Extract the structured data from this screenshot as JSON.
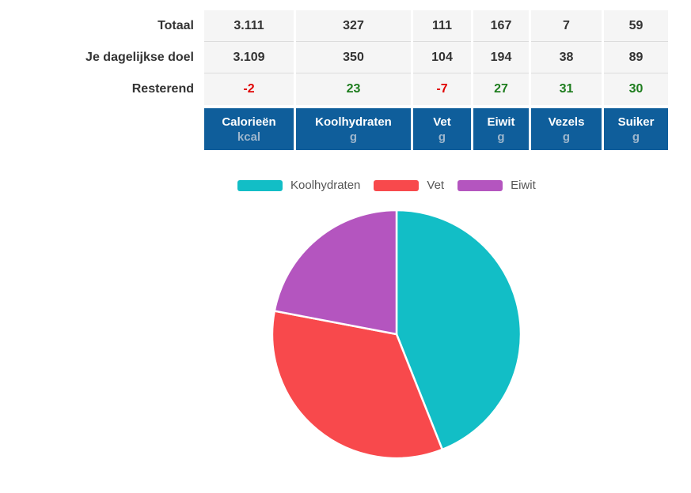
{
  "colors": {
    "header_bg": "#0f5e9b",
    "header_label": "#ffffff",
    "header_unit": "#9db6cc",
    "cell_bg": "#f5f5f5",
    "value_text": "#333333",
    "negative": "#e00000",
    "positive": "#1e7d1e",
    "legend_text": "#555555"
  },
  "table": {
    "columns": [
      {
        "label": "Calorieën",
        "unit": "kcal"
      },
      {
        "label": "Koolhydraten",
        "unit": "g"
      },
      {
        "label": "Vet",
        "unit": "g"
      },
      {
        "label": "Eiwit",
        "unit": "g"
      },
      {
        "label": "Vezels",
        "unit": "g"
      },
      {
        "label": "Suiker",
        "unit": "g"
      }
    ],
    "rows": [
      {
        "label": "Totaal",
        "values": [
          "3.111",
          "327",
          "111",
          "167",
          "7",
          "59"
        ]
      },
      {
        "label": "Je dagelijkse doel",
        "values": [
          "3.109",
          "350",
          "104",
          "194",
          "38",
          "89"
        ]
      },
      {
        "label": "Resterend",
        "values": [
          "-2",
          "23",
          "-7",
          "27",
          "31",
          "30"
        ]
      }
    ]
  },
  "chart_data": {
    "type": "pie",
    "title": "",
    "labels": [
      "Koolhydraten",
      "Vet",
      "Eiwit"
    ],
    "values": [
      44,
      34,
      22
    ],
    "unit": "%",
    "colors": [
      "#12bec6",
      "#f8494c",
      "#b455bf"
    ],
    "legend_position": "top",
    "start_angle_deg": 0,
    "direction": "clockwise",
    "slice_border_color": "#ffffff"
  }
}
